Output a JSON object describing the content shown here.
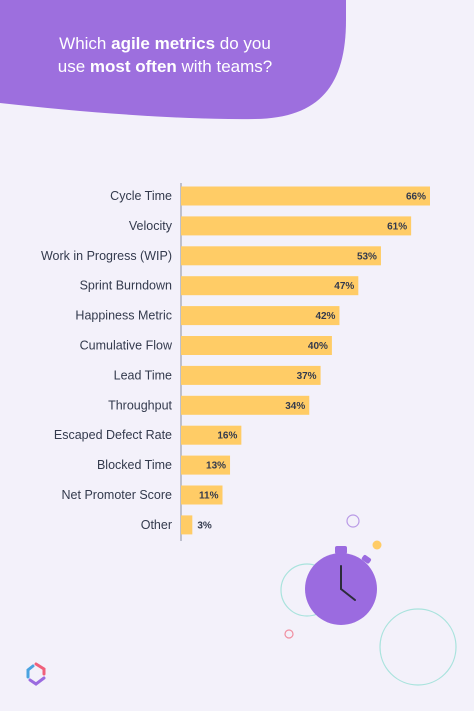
{
  "header": {
    "title_pre": "Which ",
    "title_bold1": "agile metrics",
    "title_mid": " do you",
    "title_mid2": "use ",
    "title_bold2": "most often",
    "title_post": " with teams?"
  },
  "colors": {
    "header": "#9d6fde",
    "bar": "#ffcc66",
    "background": "#f3f1fa",
    "text": "#333a4d",
    "stopwatch": "#9b6be0"
  },
  "chart_data": {
    "type": "bar",
    "orientation": "horizontal",
    "categories": [
      "Cycle Time",
      "Velocity",
      "Work in Progress (WIP)",
      "Sprint Burndown",
      "Happiness Metric",
      "Cumulative Flow",
      "Lead Time",
      "Throughput",
      "Escaped Defect Rate",
      "Blocked Time",
      "Net Promoter Score",
      "Other"
    ],
    "values": [
      66,
      61,
      53,
      47,
      42,
      40,
      37,
      34,
      16,
      13,
      11,
      3
    ],
    "value_labels": [
      "66%",
      "61%",
      "53%",
      "47%",
      "42%",
      "40%",
      "37%",
      "34%",
      "16%",
      "13%",
      "11%",
      "3%"
    ],
    "title": "Which agile metrics do you use most often with teams?",
    "xlabel": "",
    "ylabel": "",
    "xlim": [
      0,
      100
    ],
    "grid": false,
    "legend": "none"
  },
  "decor": {
    "stopwatch": "stopwatch-icon",
    "logo": "brand-logo-icon"
  }
}
